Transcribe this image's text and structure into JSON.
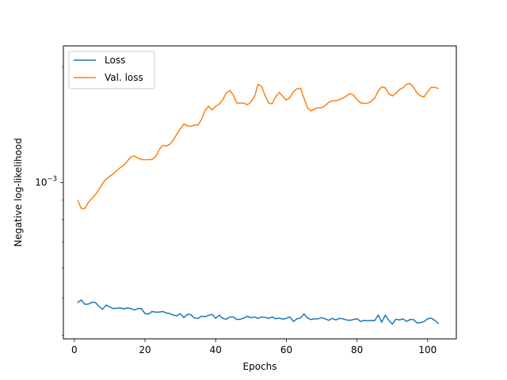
{
  "chart_data": {
    "type": "line",
    "title": "",
    "xlabel": "Epochs",
    "ylabel": "Negative log-likelihood",
    "xlim": [
      -3.1,
      108.1
    ],
    "xticks": [
      0,
      20,
      40,
      60,
      80,
      100
    ],
    "y_scale": "log",
    "ylim": [
      0.000392,
      0.00227
    ],
    "yticks": [
      {
        "value": 0.001,
        "base": "10",
        "exponent": "−3"
      }
    ],
    "grid": false,
    "legend_position": "top-left",
    "series": [
      {
        "name": "Loss",
        "color": "#1f77b4",
        "x": [
          1,
          2,
          3,
          4,
          5,
          6,
          7,
          8,
          9,
          10,
          11,
          12,
          13,
          14,
          15,
          16,
          17,
          18,
          19,
          20,
          21,
          22,
          23,
          24,
          25,
          26,
          27,
          28,
          29,
          30,
          31,
          32,
          33,
          34,
          35,
          36,
          37,
          38,
          39,
          40,
          41,
          42,
          43,
          44,
          45,
          46,
          47,
          48,
          49,
          50,
          51,
          52,
          53,
          54,
          55,
          56,
          57,
          58,
          59,
          60,
          61,
          62,
          63,
          64,
          65,
          66,
          67,
          68,
          69,
          70,
          71,
          72,
          73,
          74,
          75,
          76,
          77,
          78,
          79,
          80,
          81,
          82,
          83,
          84,
          85,
          86,
          87,
          88,
          89,
          90,
          91,
          92,
          93,
          94,
          95,
          96,
          97,
          98,
          99,
          100,
          101,
          102,
          103
        ],
        "y": [
          0.000488,
          0.000495,
          0.000482,
          0.000483,
          0.000488,
          0.000487,
          0.000476,
          0.000468,
          0.00048,
          0.000475,
          0.00047,
          0.000471,
          0.000472,
          0.000469,
          0.000472,
          0.00047,
          0.000466,
          0.00047,
          0.00047,
          0.000456,
          0.000455,
          0.000462,
          0.00046,
          0.00046,
          0.000462,
          0.000458,
          0.000456,
          0.000452,
          0.00045,
          0.000456,
          0.000445,
          0.000454,
          0.000453,
          0.000444,
          0.000443,
          0.000449,
          0.000448,
          0.000451,
          0.000454,
          0.000443,
          0.000452,
          0.000443,
          0.000441,
          0.000447,
          0.000447,
          0.00044,
          0.000441,
          0.000444,
          0.000449,
          0.000445,
          0.000447,
          0.000443,
          0.000447,
          0.000446,
          0.000443,
          0.000447,
          0.000442,
          0.000444,
          0.000441,
          0.000443,
          0.000447,
          0.000435,
          0.000442,
          0.000444,
          0.000455,
          0.000444,
          0.00044,
          0.000442,
          0.000442,
          0.000445,
          0.000442,
          0.000438,
          0.000443,
          0.000439,
          0.000443,
          0.000442,
          0.000439,
          0.000438,
          0.00044,
          0.000442,
          0.000435,
          0.000438,
          0.000437,
          0.000438,
          0.000437,
          0.000452,
          0.000433,
          0.000452,
          0.000438,
          0.000428,
          0.000441,
          0.000439,
          0.000442,
          0.000435,
          0.00044,
          0.00044,
          0.000431,
          0.000432,
          0.000435,
          0.000442,
          0.000444,
          0.000438,
          0.00043
        ]
      },
      {
        "name": "Val. loss",
        "color": "#ff7f0e",
        "x": [
          1,
          2,
          3,
          4,
          5,
          6,
          7,
          8,
          9,
          10,
          11,
          12,
          13,
          14,
          15,
          16,
          17,
          18,
          19,
          20,
          21,
          22,
          23,
          24,
          25,
          26,
          27,
          28,
          29,
          30,
          31,
          32,
          33,
          34,
          35,
          36,
          37,
          38,
          39,
          40,
          41,
          42,
          43,
          44,
          45,
          46,
          47,
          48,
          49,
          50,
          51,
          52,
          53,
          54,
          55,
          56,
          57,
          58,
          59,
          60,
          61,
          62,
          63,
          64,
          65,
          66,
          67,
          68,
          69,
          70,
          71,
          72,
          73,
          74,
          75,
          76,
          77,
          78,
          79,
          80,
          81,
          82,
          83,
          84,
          85,
          86,
          87,
          88,
          89,
          90,
          91,
          92,
          93,
          94,
          95,
          96,
          97,
          98,
          99,
          100,
          101,
          102,
          103
        ],
        "y": [
          0.000896,
          0.000856,
          0.000857,
          0.000889,
          0.00091,
          0.000931,
          0.000961,
          0.000996,
          0.001021,
          0.001039,
          0.001054,
          0.001075,
          0.001094,
          0.00111,
          0.001138,
          0.001167,
          0.001174,
          0.001159,
          0.001149,
          0.001147,
          0.001149,
          0.001149,
          0.001168,
          0.001218,
          0.00125,
          0.001245,
          0.001258,
          0.00129,
          0.001337,
          0.00138,
          0.001422,
          0.001405,
          0.001402,
          0.001413,
          0.001412,
          0.001461,
          0.001541,
          0.001582,
          0.001547,
          0.00158,
          0.001601,
          0.001643,
          0.001712,
          0.001738,
          0.001691,
          0.001612,
          0.001612,
          0.00161,
          0.001595,
          0.001623,
          0.001677,
          0.001804,
          0.001782,
          0.001684,
          0.00161,
          0.001605,
          0.001674,
          0.001718,
          0.001677,
          0.001641,
          0.001665,
          0.001725,
          0.001755,
          0.001762,
          0.001659,
          0.001566,
          0.001537,
          0.001556,
          0.001567,
          0.001566,
          0.001588,
          0.001619,
          0.001633,
          0.001634,
          0.001645,
          0.00166,
          0.00168,
          0.001706,
          0.001692,
          0.001645,
          0.001614,
          0.001609,
          0.00161,
          0.001628,
          0.001658,
          0.001732,
          0.001776,
          0.001766,
          0.001703,
          0.001682,
          0.001709,
          0.001748,
          0.001765,
          0.001803,
          0.001812,
          0.001772,
          0.001711,
          0.001681,
          0.001673,
          0.001726,
          0.001771,
          0.00177,
          0.00176
        ]
      }
    ]
  }
}
